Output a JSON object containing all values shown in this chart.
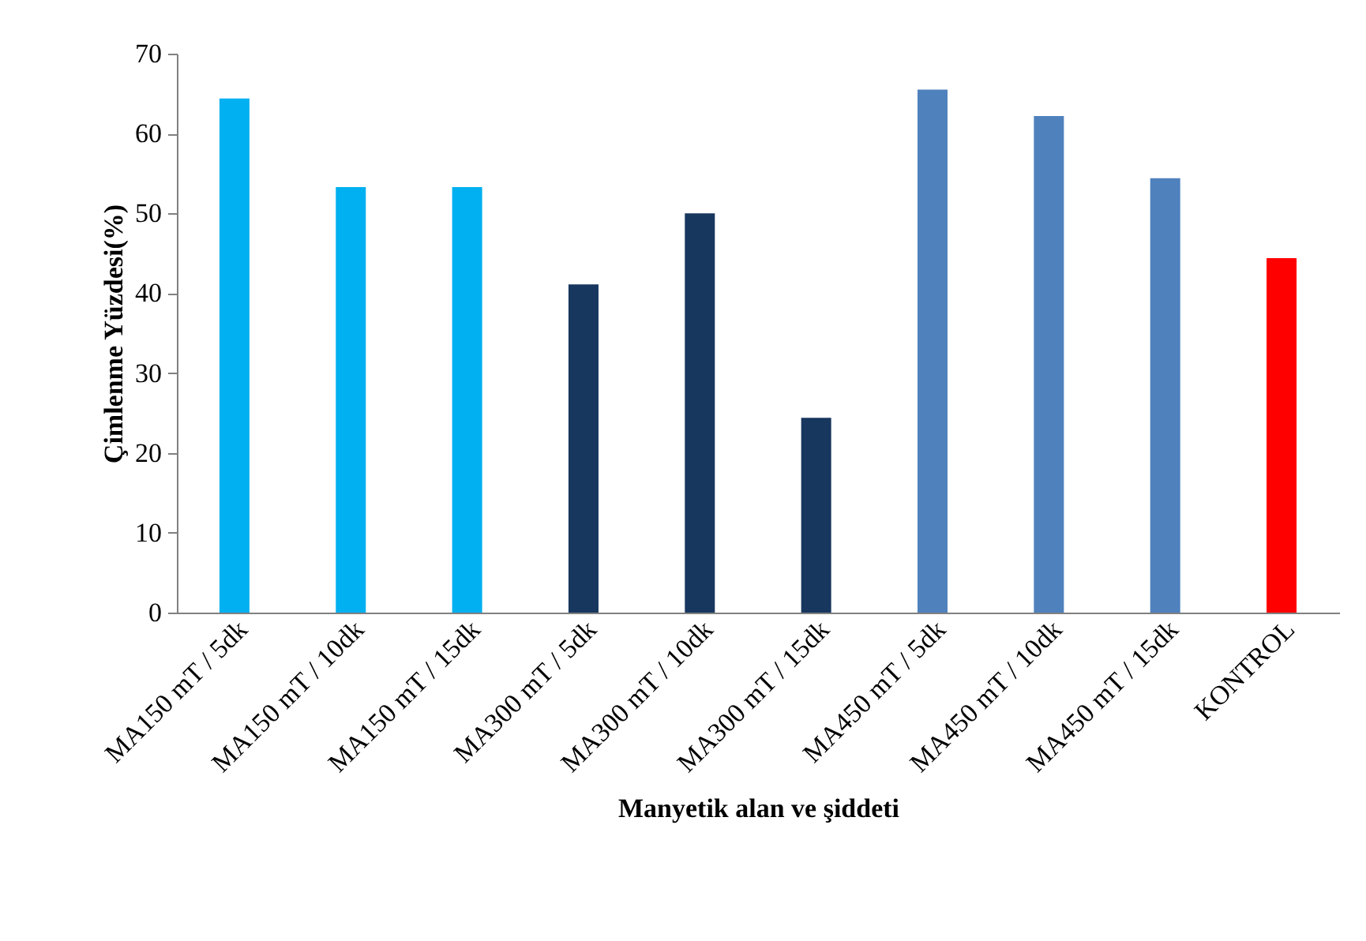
{
  "chart_data": {
    "type": "bar",
    "xlabel": "Manyetik alan ve şiddeti",
    "ylabel": "Çimlenme Yüzdesi(%)",
    "categories": [
      "MA150 mT / 5dk",
      "MA150 mT / 10dk",
      "MA150 mT / 15dk",
      "MA300 mT / 5dk",
      "MA300 mT / 10dk",
      "MA300 mT / 15dk",
      "MA450 mT / 5dk",
      "MA450 mT / 10dk",
      "MA450 mT / 15dk",
      "KONTROL"
    ],
    "values": [
      64.4,
      53.3,
      53.3,
      41.1,
      50,
      24.4,
      65.5,
      62.2,
      54.4,
      44.4
    ],
    "colors": [
      "#00b0f0",
      "#00b0f0",
      "#00b0f0",
      "#17375e",
      "#17375e",
      "#17375e",
      "#4f81bd",
      "#4f81bd",
      "#4f81bd",
      "#ff0000"
    ],
    "ylim": [
      0,
      70
    ],
    "yticks": [
      0,
      10,
      20,
      30,
      40,
      50,
      60,
      70
    ],
    "grid": false
  }
}
